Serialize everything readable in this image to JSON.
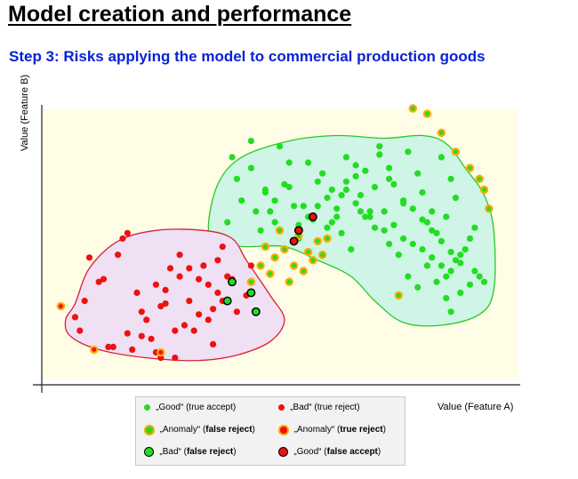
{
  "header": {
    "title": "Model creation and performance",
    "subtitle": "Step 3: Risks applying the model to commercial production goods"
  },
  "colors": {
    "plot_background": "#fffde6",
    "good": "#22dd22",
    "bad": "#ee1111",
    "anomaly_ring": "#ffaa00",
    "black_ring": "#000000",
    "good_region_fill": "#cff5e6",
    "good_region_stroke": "#28c828",
    "bad_region_fill": "#efe0f3",
    "bad_region_stroke": "#d81e3c",
    "title_blue": "#0a22d6"
  },
  "legend": {
    "items": [
      {
        "pre": "„Good“ (true accept)",
        "bold": "",
        "post": "",
        "marker": "good"
      },
      {
        "pre": "„Bad“ (true reject)",
        "bold": "",
        "post": "",
        "marker": "bad"
      },
      {
        "pre": "„Anomaly“ (",
        "bold": "false reject",
        "post": ")",
        "marker": "anomaly-good"
      },
      {
        "pre": "„Anomaly“ (",
        "bold": "true reject",
        "post": ")",
        "marker": "anomaly-bad"
      },
      {
        "pre": "„Bad“ (",
        "bold": "false reject",
        "post": ")",
        "marker": "bad-in-good"
      },
      {
        "pre": "„Good“ (",
        "bold": "false accept",
        "post": ")",
        "marker": "good-in-bad"
      }
    ]
  },
  "chart_data": {
    "type": "scatter",
    "title": "",
    "xlabel": "Value  (Feature A)",
    "ylabel": "Value  (Feature B)",
    "xlim": [
      0,
      100
    ],
    "ylim": [
      0,
      100
    ],
    "grid": false,
    "tick_labels": false,
    "legend_placement": "bottom",
    "regions": [
      {
        "name": "good-region",
        "outline": [
          [
            35,
            56
          ],
          [
            37,
            72
          ],
          [
            42,
            82
          ],
          [
            52,
            88
          ],
          [
            62,
            90
          ],
          [
            72,
            89
          ],
          [
            80,
            90
          ],
          [
            85,
            87
          ],
          [
            89,
            78
          ],
          [
            93,
            68
          ],
          [
            95,
            55
          ],
          [
            95,
            33
          ],
          [
            92,
            24
          ],
          [
            84,
            20
          ],
          [
            76,
            21
          ],
          [
            70,
            29
          ],
          [
            65,
            38
          ],
          [
            58,
            44
          ],
          [
            51,
            49
          ],
          [
            43,
            49
          ],
          [
            37,
            50
          ]
        ]
      },
      {
        "name": "bad-region",
        "outline": [
          [
            7,
            28
          ],
          [
            10,
            41
          ],
          [
            16,
            51
          ],
          [
            24,
            55
          ],
          [
            34,
            55
          ],
          [
            40,
            52
          ],
          [
            43,
            44
          ],
          [
            48,
            31
          ],
          [
            51,
            22
          ],
          [
            48,
            14
          ],
          [
            41,
            9
          ],
          [
            33,
            7
          ],
          [
            22,
            8
          ],
          [
            12,
            11
          ],
          [
            6,
            16
          ],
          [
            5,
            22
          ]
        ]
      }
    ],
    "series": [
      {
        "name": "„Good“ (true accept)",
        "marker": "good",
        "x": [
          40,
          41,
          42,
          39,
          44,
          47,
          48,
          46,
          49,
          51,
          53,
          54,
          56,
          58,
          60,
          62,
          64,
          66,
          67,
          69,
          71,
          73,
          74,
          76,
          77,
          79,
          80,
          82,
          84,
          86,
          87,
          85,
          83,
          81,
          45,
          47,
          49,
          52,
          55,
          57,
          60,
          62,
          64,
          66,
          68,
          70,
          72,
          74,
          76,
          78,
          80,
          82,
          84,
          86,
          88,
          90,
          91,
          89,
          87,
          85,
          54,
          56,
          58,
          61,
          63,
          65,
          67,
          69,
          72,
          73,
          75,
          77,
          79,
          81,
          83,
          85,
          86,
          88,
          92,
          44,
          50,
          52,
          59,
          61,
          63,
          64,
          66,
          68,
          70,
          71,
          73,
          76,
          78,
          80,
          82,
          84,
          86,
          88,
          90,
          91,
          93
        ],
        "y": [
          82,
          74,
          66,
          58,
          78,
          70,
          62,
          55,
          66,
          72,
          64,
          57,
          80,
          73,
          67,
          60,
          82,
          75,
          68,
          62,
          86,
          78,
          72,
          65,
          84,
          76,
          69,
          62,
          82,
          74,
          67,
          60,
          54,
          58,
          62,
          69,
          58,
          71,
          64,
          59,
          56,
          63,
          70,
          65,
          60,
          56,
          62,
          57,
          52,
          50,
          48,
          45,
          42,
          40,
          46,
          52,
          56,
          48,
          44,
          38,
          52,
          60,
          64,
          58,
          54,
          48,
          62,
          60,
          55,
          50,
          46,
          38,
          34,
          42,
          36,
          30,
          25,
          32,
          38,
          88,
          86,
          80,
          76,
          70,
          68,
          73,
          79,
          77,
          71,
          83,
          74,
          66,
          63,
          59,
          55,
          51,
          47,
          43,
          35,
          40,
          36
        ]
      },
      {
        "name": "„Bad“ (true reject)",
        "marker": "bad",
        "x": [
          10,
          16,
          17,
          13,
          9,
          7,
          8,
          14,
          18,
          21,
          25,
          26,
          29,
          31,
          33,
          35,
          37,
          38,
          36,
          33,
          30,
          28,
          23,
          19,
          15,
          20,
          22,
          26,
          24,
          27,
          31,
          32,
          35,
          34,
          37,
          39,
          12,
          18,
          29,
          38,
          40,
          41,
          36,
          24,
          21,
          43,
          44,
          25,
          28
        ],
        "y": [
          45,
          46,
          52,
          37,
          29,
          23,
          18,
          12,
          17,
          25,
          27,
          33,
          38,
          41,
          37,
          35,
          32,
          29,
          26,
          24,
          20,
          18,
          15,
          11,
          12,
          32,
          22,
          28,
          35,
          41,
          29,
          18,
          22,
          42,
          44,
          38,
          36,
          54,
          46,
          49,
          37,
          25,
          13,
          10,
          16,
          31,
          42,
          8,
          8
        ]
      },
      {
        "name": "„Anomaly“ (false reject)",
        "marker": "anomaly-good",
        "x": [
          78,
          81,
          84,
          87,
          90,
          92,
          93,
          94,
          75,
          58,
          56,
          53,
          51,
          49,
          50,
          47,
          46,
          44,
          48,
          52,
          55,
          57,
          59,
          60,
          54
        ],
        "y": [
          100,
          98,
          91,
          84,
          78,
          74,
          70,
          63,
          31,
          51,
          47,
          42,
          48,
          45,
          55,
          49,
          42,
          36,
          39,
          36,
          40,
          44,
          46,
          52,
          53
        ]
      },
      {
        "name": "„Anomaly“ (true reject)",
        "marker": "anomaly-bad",
        "x": [
          4,
          11,
          25
        ],
        "y": [
          27,
          11,
          10
        ]
      },
      {
        "name": "„Bad“ (false reject)",
        "marker": "bad-in-good",
        "x": [
          40,
          39,
          44,
          45
        ],
        "y": [
          36,
          29,
          32,
          25
        ]
      },
      {
        "name": "„Good“ (false accept)",
        "marker": "good-in-bad",
        "x": [
          54,
          57,
          53
        ],
        "y": [
          55,
          60,
          51
        ]
      }
    ]
  }
}
